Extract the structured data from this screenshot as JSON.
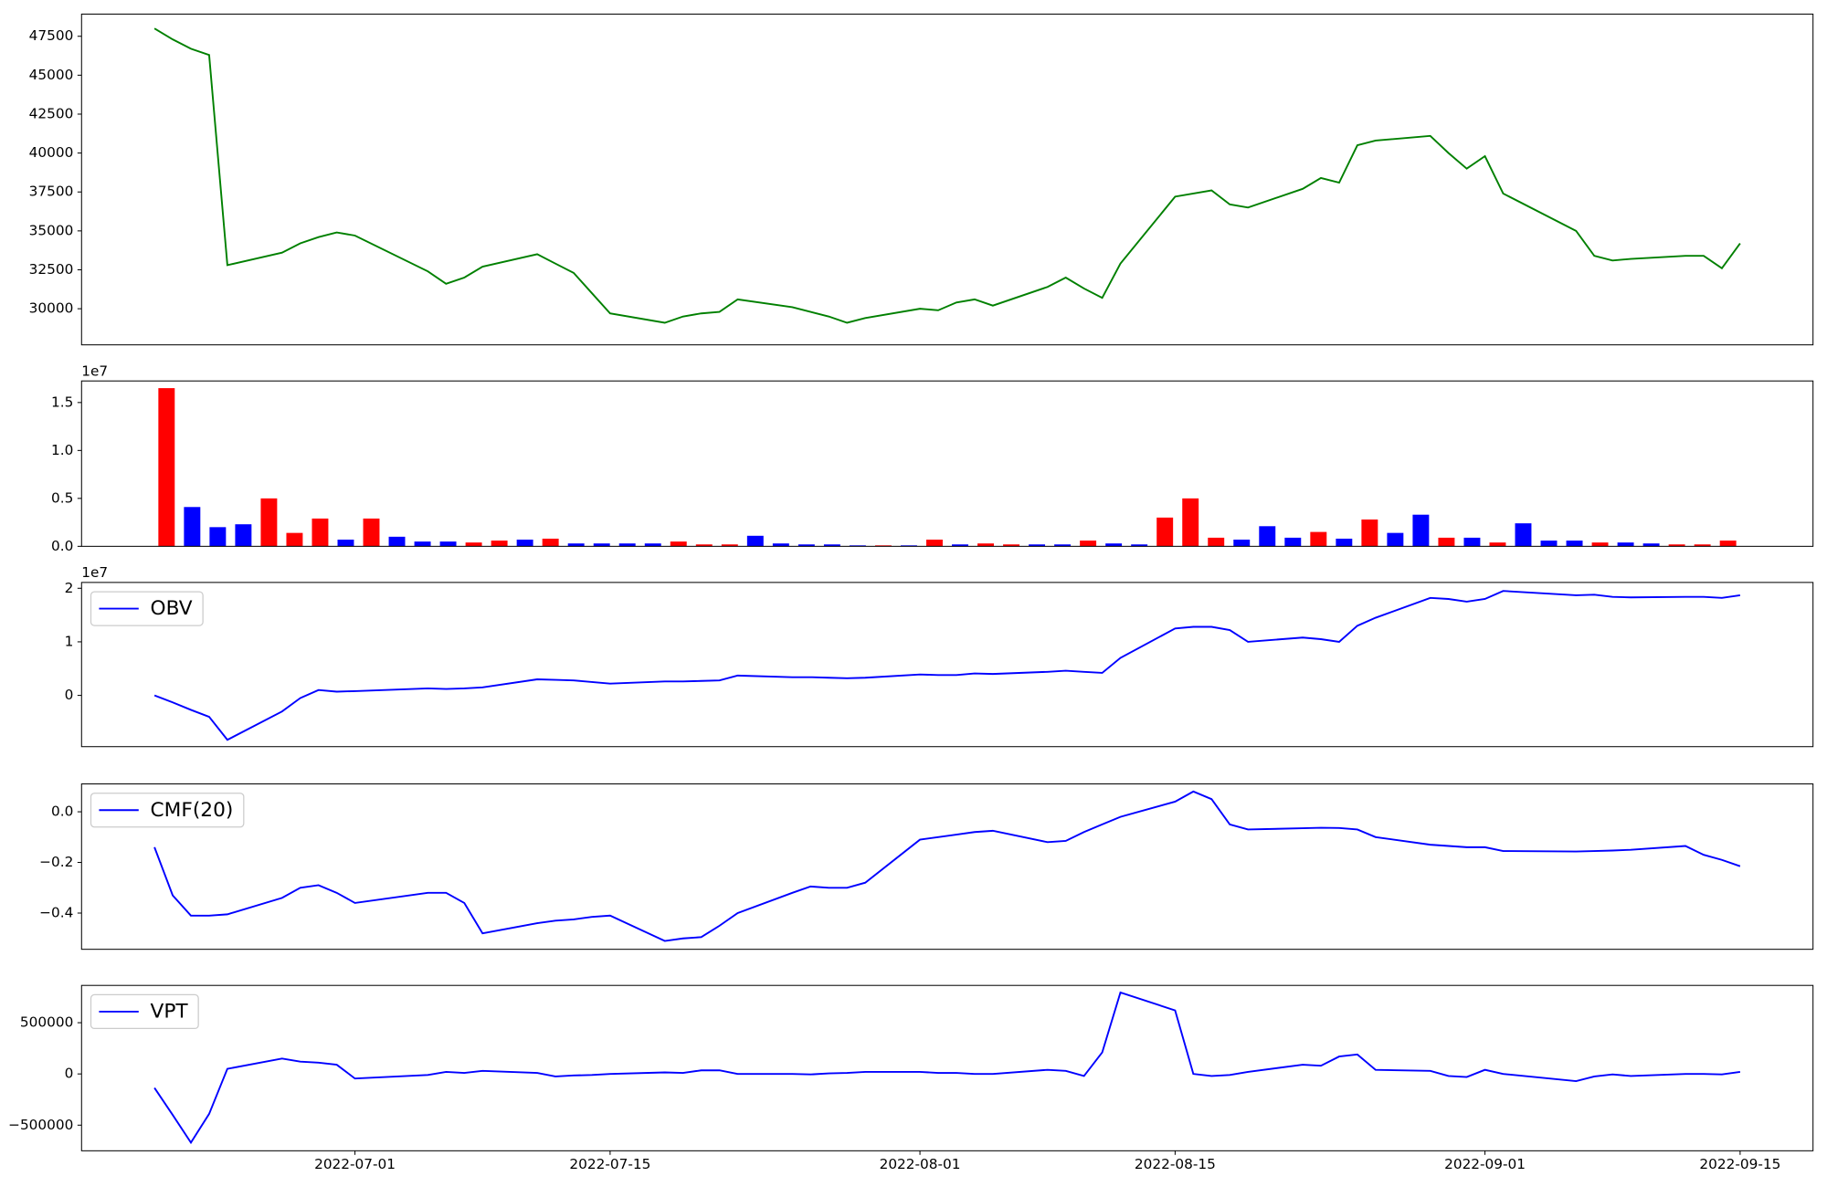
{
  "chart_data": [
    {
      "type": "line",
      "x": [
        "2022-06-20",
        "2022-06-21",
        "2022-06-22",
        "2022-06-23",
        "2022-06-24",
        "2022-06-27",
        "2022-06-28",
        "2022-06-29",
        "2022-06-30",
        "2022-07-01",
        "2022-07-05",
        "2022-07-06",
        "2022-07-07",
        "2022-07-08",
        "2022-07-11",
        "2022-07-12",
        "2022-07-13",
        "2022-07-14",
        "2022-07-15",
        "2022-07-18",
        "2022-07-19",
        "2022-07-20",
        "2022-07-21",
        "2022-07-22",
        "2022-07-25",
        "2022-07-26",
        "2022-07-27",
        "2022-07-28",
        "2022-07-29",
        "2022-08-01",
        "2022-08-02",
        "2022-08-03",
        "2022-08-04",
        "2022-08-05",
        "2022-08-08",
        "2022-08-09",
        "2022-08-10",
        "2022-08-11",
        "2022-08-12",
        "2022-08-15",
        "2022-08-16",
        "2022-08-17",
        "2022-08-18",
        "2022-08-19",
        "2022-08-22",
        "2022-08-23",
        "2022-08-24",
        "2022-08-25",
        "2022-08-26",
        "2022-08-29",
        "2022-08-30",
        "2022-08-31",
        "2022-09-01",
        "2022-09-02",
        "2022-09-06",
        "2022-09-07",
        "2022-09-08",
        "2022-09-09",
        "2022-09-12",
        "2022-09-13",
        "2022-09-14",
        "2022-09-15"
      ],
      "series": [
        {
          "color": "green",
          "values": [
            48000,
            47300,
            46700,
            46300,
            32800,
            33600,
            34200,
            34600,
            34900,
            34700,
            32400,
            31600,
            32000,
            32700,
            33500,
            32900,
            32300,
            31000,
            29700,
            29100,
            29500,
            29700,
            29800,
            30600,
            30100,
            29800,
            29500,
            29100,
            29400,
            30000,
            29900,
            30400,
            30600,
            30200,
            31400,
            32000,
            31300,
            30700,
            32900,
            37200,
            37400,
            37600,
            36700,
            36500,
            37700,
            38400,
            38100,
            40500,
            40800,
            41100,
            40000,
            39000,
            39800,
            37400,
            35000,
            33400,
            33100,
            33200,
            33400,
            33400,
            32600,
            34200
          ]
        }
      ],
      "xlim": [
        "2022-06-16",
        "2022-09-19"
      ],
      "ylim": [
        27680,
        48925
      ],
      "yticks": [
        30000,
        32500,
        35000,
        37500,
        40000,
        42500,
        45000,
        47500
      ]
    },
    {
      "type": "bar",
      "categories": [
        null,
        null,
        null,
        null,
        null,
        null,
        null,
        null,
        null,
        null,
        null,
        null,
        null,
        null,
        null,
        null,
        null,
        null,
        null,
        null,
        null,
        null,
        null,
        null,
        null,
        null,
        null,
        null,
        null,
        null,
        null,
        null,
        null,
        null,
        null,
        null,
        null,
        null,
        null,
        null,
        null,
        null,
        null,
        null,
        null,
        null,
        null,
        null,
        null,
        null,
        null,
        null,
        null,
        null,
        null,
        null,
        null,
        null,
        null,
        null,
        null,
        null
      ],
      "values": [
        16500000,
        4100000,
        2000000,
        2300000,
        5000000,
        1400000,
        2900000,
        700000,
        2900000,
        1000000,
        500000,
        500000,
        400000,
        600000,
        700000,
        800000,
        300000,
        300000,
        300000,
        300000,
        500000,
        200000,
        200000,
        1100000,
        300000,
        200000,
        200000,
        100000,
        100000,
        100000,
        700000,
        200000,
        300000,
        200000,
        200000,
        200000,
        600000,
        300000,
        200000,
        3000000,
        5000000,
        900000,
        700000,
        2100000,
        900000,
        1500000,
        800000,
        2800000,
        1400000,
        3300000,
        900000,
        900000,
        400000,
        2400000,
        600000,
        600000,
        400000,
        400000,
        300000,
        200000,
        200000,
        600000
      ],
      "colors": [
        "red",
        "blue",
        "blue",
        "blue",
        "red",
        "red",
        "red",
        "blue",
        "red",
        "blue",
        "blue",
        "blue",
        "red",
        "red",
        "blue",
        "red",
        "blue",
        "blue",
        "blue",
        "blue",
        "red",
        "red",
        "red",
        "blue",
        "blue",
        "blue",
        "blue",
        "blue",
        "red",
        "blue",
        "red",
        "blue",
        "red",
        "red",
        "blue",
        "blue",
        "red",
        "blue",
        "blue",
        "red",
        "red",
        "red",
        "blue",
        "blue",
        "blue",
        "red",
        "blue",
        "red",
        "blue",
        "blue",
        "red",
        "blue",
        "red",
        "blue",
        "blue",
        "blue",
        "red",
        "blue",
        "blue",
        "red",
        "red",
        "red"
      ],
      "ylim": [
        0,
        17250000
      ],
      "yticks": [
        {
          "value": 0,
          "label": "0.0"
        },
        {
          "value": 5000000,
          "label": "0.5"
        },
        {
          "value": 10000000,
          "label": "1.0"
        },
        {
          "value": 15000000,
          "label": "1.5"
        }
      ],
      "offset_label": "1e7"
    },
    {
      "type": "line",
      "x": [
        "2022-06-20",
        "2022-06-21",
        "2022-06-22",
        "2022-06-23",
        "2022-06-24",
        "2022-06-27",
        "2022-06-28",
        "2022-06-29",
        "2022-06-30",
        "2022-07-01",
        "2022-07-05",
        "2022-07-06",
        "2022-07-07",
        "2022-07-08",
        "2022-07-11",
        "2022-07-12",
        "2022-07-13",
        "2022-07-14",
        "2022-07-15",
        "2022-07-18",
        "2022-07-19",
        "2022-07-20",
        "2022-07-21",
        "2022-07-22",
        "2022-07-25",
        "2022-07-26",
        "2022-07-27",
        "2022-07-28",
        "2022-07-29",
        "2022-08-01",
        "2022-08-02",
        "2022-08-03",
        "2022-08-04",
        "2022-08-05",
        "2022-08-08",
        "2022-08-09",
        "2022-08-10",
        "2022-08-11",
        "2022-08-12",
        "2022-08-15",
        "2022-08-16",
        "2022-08-17",
        "2022-08-18",
        "2022-08-19",
        "2022-08-22",
        "2022-08-23",
        "2022-08-24",
        "2022-08-25",
        "2022-08-26",
        "2022-08-29",
        "2022-08-30",
        "2022-08-31",
        "2022-09-01",
        "2022-09-02",
        "2022-09-06",
        "2022-09-07",
        "2022-09-08",
        "2022-09-09",
        "2022-09-12",
        "2022-09-13",
        "2022-09-14",
        "2022-09-15"
      ],
      "series": [
        {
          "name": "OBV",
          "color": "blue",
          "values": [
            0,
            -1300000,
            -2700000,
            -4000000,
            -8300000,
            -3000000,
            -500000,
            1000000,
            700000,
            800000,
            1300000,
            1200000,
            1300000,
            1500000,
            3000000,
            2900000,
            2800000,
            2500000,
            2200000,
            2600000,
            2600000,
            2700000,
            2800000,
            3700000,
            3400000,
            3400000,
            3300000,
            3200000,
            3300000,
            3900000,
            3800000,
            3800000,
            4100000,
            4000000,
            4400000,
            4600000,
            4400000,
            4200000,
            7000000,
            12500000,
            12800000,
            12800000,
            12200000,
            10000000,
            10800000,
            10500000,
            10000000,
            13000000,
            14500000,
            18200000,
            18000000,
            17500000,
            18000000,
            19500000,
            18700000,
            18800000,
            18400000,
            18300000,
            18400000,
            18400000,
            18200000,
            18700000
          ]
        }
      ],
      "xlim": [
        "2022-06-16",
        "2022-09-19"
      ],
      "ylim": [
        -9570000,
        21090000
      ],
      "yticks": [
        0,
        {
          "value": 10000000,
          "label": "1"
        },
        {
          "value": 20000000,
          "label": "2"
        }
      ],
      "offset_label": "1e7",
      "legend": "upper left"
    },
    {
      "type": "line",
      "x": [
        "2022-06-20",
        "2022-06-21",
        "2022-06-22",
        "2022-06-23",
        "2022-06-24",
        "2022-06-27",
        "2022-06-28",
        "2022-06-29",
        "2022-06-30",
        "2022-07-01",
        "2022-07-05",
        "2022-07-06",
        "2022-07-07",
        "2022-07-08",
        "2022-07-11",
        "2022-07-12",
        "2022-07-13",
        "2022-07-14",
        "2022-07-15",
        "2022-07-18",
        "2022-07-19",
        "2022-07-20",
        "2022-07-21",
        "2022-07-22",
        "2022-07-25",
        "2022-07-26",
        "2022-07-27",
        "2022-07-28",
        "2022-07-29",
        "2022-08-01",
        "2022-08-02",
        "2022-08-03",
        "2022-08-04",
        "2022-08-05",
        "2022-08-08",
        "2022-08-09",
        "2022-08-10",
        "2022-08-11",
        "2022-08-12",
        "2022-08-15",
        "2022-08-16",
        "2022-08-17",
        "2022-08-18",
        "2022-08-19",
        "2022-08-22",
        "2022-08-23",
        "2022-08-24",
        "2022-08-25",
        "2022-08-26",
        "2022-08-29",
        "2022-08-30",
        "2022-08-31",
        "2022-09-01",
        "2022-09-02",
        "2022-09-06",
        "2022-09-07",
        "2022-09-08",
        "2022-09-09",
        "2022-09-12",
        "2022-09-13",
        "2022-09-14",
        "2022-09-15"
      ],
      "series": [
        {
          "name": "CMF(20)",
          "color": "blue",
          "values": [
            -0.14,
            -0.33,
            -0.41,
            -0.41,
            -0.405,
            -0.34,
            -0.3,
            -0.29,
            -0.32,
            -0.36,
            -0.32,
            -0.32,
            -0.36,
            -0.48,
            -0.44,
            -0.43,
            -0.425,
            -0.415,
            -0.41,
            -0.51,
            -0.5,
            -0.495,
            -0.45,
            -0.4,
            -0.32,
            -0.295,
            -0.3,
            -0.3,
            -0.28,
            -0.11,
            -0.1,
            -0.09,
            -0.08,
            -0.075,
            -0.12,
            -0.115,
            -0.08,
            -0.05,
            -0.02,
            0.04,
            0.08,
            0.05,
            -0.05,
            -0.07,
            -0.065,
            -0.063,
            -0.064,
            -0.07,
            -0.1,
            -0.13,
            -0.135,
            -0.14,
            -0.14,
            -0.155,
            -0.157,
            -0.155,
            -0.153,
            -0.15,
            -0.135,
            -0.17,
            -0.19,
            -0.215
          ]
        }
      ],
      "xlim": [
        "2022-06-16",
        "2022-09-19"
      ],
      "ylim": [
        -0.543,
        0.11
      ],
      "yticks": [
        {
          "value": -0.4,
          "label": "−0.4"
        },
        {
          "value": -0.2,
          "label": "−0.2"
        },
        {
          "value": 0,
          "label": "0.0"
        }
      ],
      "legend": "upper left"
    },
    {
      "type": "line",
      "x": [
        "2022-06-20",
        "2022-06-21",
        "2022-06-22",
        "2022-06-23",
        "2022-06-24",
        "2022-06-27",
        "2022-06-28",
        "2022-06-29",
        "2022-06-30",
        "2022-07-01",
        "2022-07-05",
        "2022-07-06",
        "2022-07-07",
        "2022-07-08",
        "2022-07-11",
        "2022-07-12",
        "2022-07-13",
        "2022-07-14",
        "2022-07-15",
        "2022-07-18",
        "2022-07-19",
        "2022-07-20",
        "2022-07-21",
        "2022-07-22",
        "2022-07-25",
        "2022-07-26",
        "2022-07-27",
        "2022-07-28",
        "2022-07-29",
        "2022-08-01",
        "2022-08-02",
        "2022-08-03",
        "2022-08-04",
        "2022-08-05",
        "2022-08-08",
        "2022-08-09",
        "2022-08-10",
        "2022-08-11",
        "2022-08-12",
        "2022-08-15",
        "2022-08-16",
        "2022-08-17",
        "2022-08-18",
        "2022-08-19",
        "2022-08-22",
        "2022-08-23",
        "2022-08-24",
        "2022-08-25",
        "2022-08-26",
        "2022-08-29",
        "2022-08-30",
        "2022-08-31",
        "2022-09-01",
        "2022-09-02",
        "2022-09-06",
        "2022-09-07",
        "2022-09-08",
        "2022-09-09",
        "2022-09-12",
        "2022-09-13",
        "2022-09-14",
        "2022-09-15"
      ],
      "series": [
        {
          "name": "VPT",
          "color": "blue",
          "values": [
            -136000,
            -400000,
            -670000,
            -390000,
            50000,
            150000,
            120000,
            110000,
            90000,
            -45000,
            -10000,
            20000,
            10000,
            30000,
            10000,
            -25000,
            -15000,
            -10000,
            0,
            15000,
            10000,
            35000,
            35000,
            0,
            0,
            -5000,
            5000,
            10000,
            20000,
            20000,
            10000,
            10000,
            0,
            0,
            40000,
            30000,
            -20000,
            210000,
            795000,
            620000,
            0,
            -20000,
            -10000,
            20000,
            90000,
            80000,
            170000,
            190000,
            40000,
            30000,
            -20000,
            -30000,
            40000,
            0,
            -70000,
            -25000,
            -5000,
            -20000,
            0,
            0,
            -5000,
            20000
          ]
        }
      ],
      "xlim": [
        "2022-06-16",
        "2022-09-19"
      ],
      "ylim": [
        -750000,
        864000
      ],
      "yticks": [
        {
          "value": -500000,
          "label": "−500000"
        },
        0,
        500000
      ],
      "xticks": [
        "2022-07-01",
        "2022-07-15",
        "2022-08-01",
        "2022-08-15",
        "2022-09-01",
        "2022-09-15"
      ],
      "legend": "upper left"
    }
  ]
}
